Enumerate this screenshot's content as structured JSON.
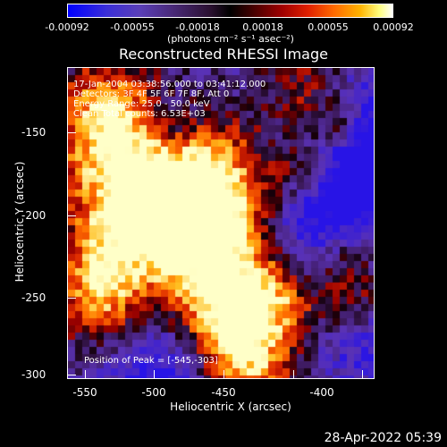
{
  "colorbar": {
    "ticks": [
      "-0.00092",
      "-0.00055",
      "-0.00018",
      "0.00018",
      "0.00055",
      "0.00092"
    ],
    "units": "(photons cm⁻² s⁻¹ asec⁻²)"
  },
  "title": "Reconstructed RHESSI Image",
  "info": {
    "time_range": "17-Jan-2004 03:38:56.000 to 03:41:12.000",
    "detectors": "Detectors: 3F 4F 5F 6F 7F 8F, Att 0",
    "energy": "Energy Range: 25.0 - 50.0 keV",
    "method": "Clean    Total counts: 6.53E+03",
    "peak": "Position of Peak = [-545,-303]"
  },
  "axes": {
    "xlabel": "Heliocentric X (arcsec)",
    "ylabel": "Heliocentric Y (arcsec)",
    "xticks": [
      "-550",
      "-500",
      "-450",
      "-400"
    ],
    "yticks": [
      "-150",
      "-200",
      "-250",
      "-300"
    ]
  },
  "timestamp": "28-Apr-2022 05:39",
  "chart_data": {
    "type": "heatmap",
    "title": "Reconstructed RHESSI Image",
    "xlabel": "Heliocentric X (arcsec)",
    "ylabel": "Heliocentric Y (arcsec)",
    "xlim": [
      -560,
      -368
    ],
    "ylim": [
      -303,
      -110
    ],
    "colorbar_range": [
      -0.00092,
      0.00092
    ],
    "peak": [
      -545,
      -303
    ]
  }
}
